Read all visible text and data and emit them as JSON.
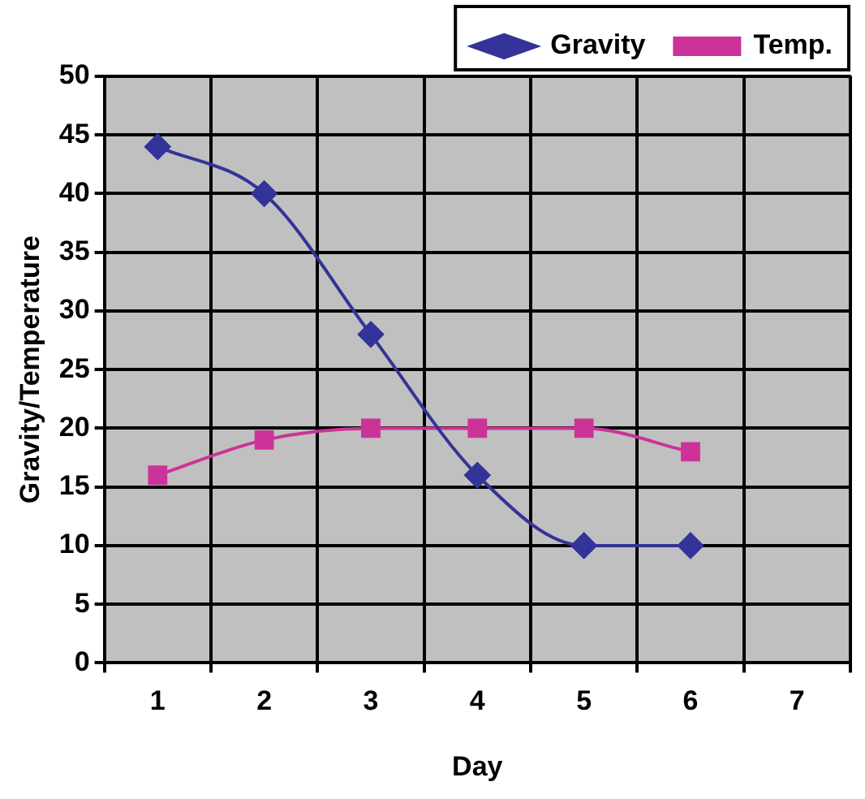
{
  "chart_data": {
    "type": "line",
    "xlabel": "Day",
    "ylabel": "Gravity/Temperature",
    "categories": [
      "1",
      "2",
      "3",
      "4",
      "5",
      "6",
      "7"
    ],
    "series": [
      {
        "name": "Gravity",
        "color": "#333399",
        "marker": "diamond",
        "values": [
          44,
          40,
          28,
          16,
          10,
          10,
          null
        ]
      },
      {
        "name": "Temp.",
        "color": "#cc3399",
        "marker": "square",
        "values": [
          16,
          19,
          20,
          20,
          20,
          18,
          null
        ]
      }
    ],
    "ylim": [
      0,
      50
    ],
    "yticks": [
      0,
      5,
      10,
      15,
      20,
      25,
      30,
      35,
      40,
      45,
      50
    ],
    "grid": true,
    "legend": "top"
  }
}
